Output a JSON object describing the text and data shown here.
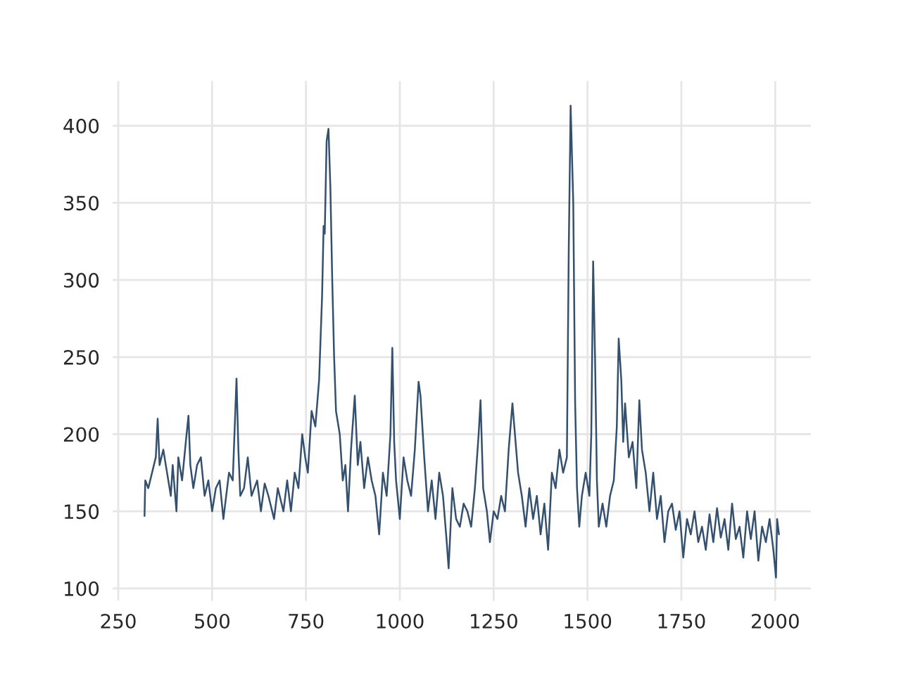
{
  "chart_data": {
    "type": "line",
    "x": [
      320,
      322,
      330,
      340,
      350,
      355,
      360,
      370,
      380,
      390,
      395,
      405,
      410,
      420,
      430,
      437,
      442,
      450,
      460,
      470,
      480,
      490,
      500,
      510,
      520,
      530,
      545,
      555,
      565,
      570,
      575,
      585,
      595,
      605,
      620,
      630,
      640,
      650,
      665,
      675,
      690,
      700,
      710,
      720,
      730,
      740,
      748,
      755,
      765,
      775,
      785,
      793,
      797,
      800,
      805,
      810,
      815,
      820,
      825,
      830,
      840,
      848,
      855,
      862,
      870,
      880,
      888,
      895,
      905,
      915,
      925,
      935,
      945,
      955,
      965,
      975,
      980,
      985,
      990,
      1000,
      1010,
      1020,
      1030,
      1040,
      1050,
      1055,
      1065,
      1075,
      1085,
      1095,
      1105,
      1115,
      1125,
      1130,
      1140,
      1150,
      1160,
      1170,
      1180,
      1190,
      1200,
      1210,
      1215,
      1222,
      1232,
      1240,
      1250,
      1260,
      1270,
      1280,
      1290,
      1300,
      1305,
      1315,
      1325,
      1335,
      1345,
      1355,
      1365,
      1375,
      1385,
      1395,
      1405,
      1415,
      1425,
      1435,
      1445,
      1450,
      1455,
      1462,
      1467,
      1472,
      1478,
      1485,
      1495,
      1505,
      1510,
      1515,
      1520,
      1525,
      1530,
      1540,
      1550,
      1560,
      1570,
      1578,
      1583,
      1590,
      1595,
      1600,
      1610,
      1620,
      1630,
      1638,
      1645,
      1655,
      1665,
      1675,
      1685,
      1695,
      1705,
      1715,
      1725,
      1735,
      1745,
      1755,
      1765,
      1775,
      1785,
      1795,
      1805,
      1815,
      1825,
      1835,
      1845,
      1855,
      1865,
      1875,
      1885,
      1895,
      1905,
      1915,
      1925,
      1935,
      1945,
      1955,
      1965,
      1975,
      1985,
      1995,
      2002,
      2005,
      2010
    ],
    "series": [
      {
        "color": "#34506f",
        "values": [
          147,
          170,
          165,
          175,
          185,
          210,
          180,
          190,
          175,
          160,
          180,
          150,
          185,
          170,
          195,
          212,
          180,
          165,
          180,
          185,
          160,
          170,
          150,
          165,
          170,
          145,
          175,
          170,
          236,
          190,
          160,
          165,
          185,
          160,
          170,
          150,
          168,
          160,
          145,
          165,
          150,
          170,
          150,
          175,
          165,
          200,
          185,
          175,
          215,
          205,
          235,
          290,
          335,
          330,
          390,
          398,
          360,
          300,
          250,
          215,
          200,
          170,
          180,
          150,
          190,
          225,
          180,
          195,
          165,
          185,
          170,
          160,
          135,
          175,
          160,
          200,
          256,
          195,
          170,
          145,
          185,
          170,
          160,
          190,
          234,
          225,
          185,
          150,
          170,
          145,
          175,
          160,
          130,
          113,
          165,
          145,
          140,
          155,
          150,
          140,
          165,
          200,
          222,
          165,
          150,
          130,
          150,
          145,
          160,
          150,
          190,
          220,
          205,
          175,
          160,
          140,
          165,
          145,
          160,
          135,
          155,
          125,
          175,
          165,
          190,
          175,
          185,
          320,
          413,
          350,
          220,
          165,
          140,
          160,
          175,
          160,
          200,
          312,
          250,
          170,
          140,
          155,
          140,
          160,
          170,
          205,
          262,
          235,
          195,
          220,
          185,
          195,
          165,
          222,
          190,
          175,
          150,
          175,
          145,
          160,
          130,
          150,
          155,
          138,
          150,
          120,
          145,
          135,
          150,
          130,
          140,
          125,
          148,
          130,
          152,
          133,
          145,
          125,
          155,
          132,
          140,
          120,
          150,
          132,
          150,
          118,
          140,
          130,
          145,
          125,
          107,
          145,
          135
        ]
      }
    ],
    "xlim": [
      235,
      2095
    ],
    "ylim": [
      92,
      429
    ],
    "xticks": [
      250,
      500,
      750,
      1000,
      1250,
      1500,
      1750,
      2000
    ],
    "yticks": [
      100,
      150,
      200,
      250,
      300,
      350,
      400
    ],
    "grid": true
  }
}
